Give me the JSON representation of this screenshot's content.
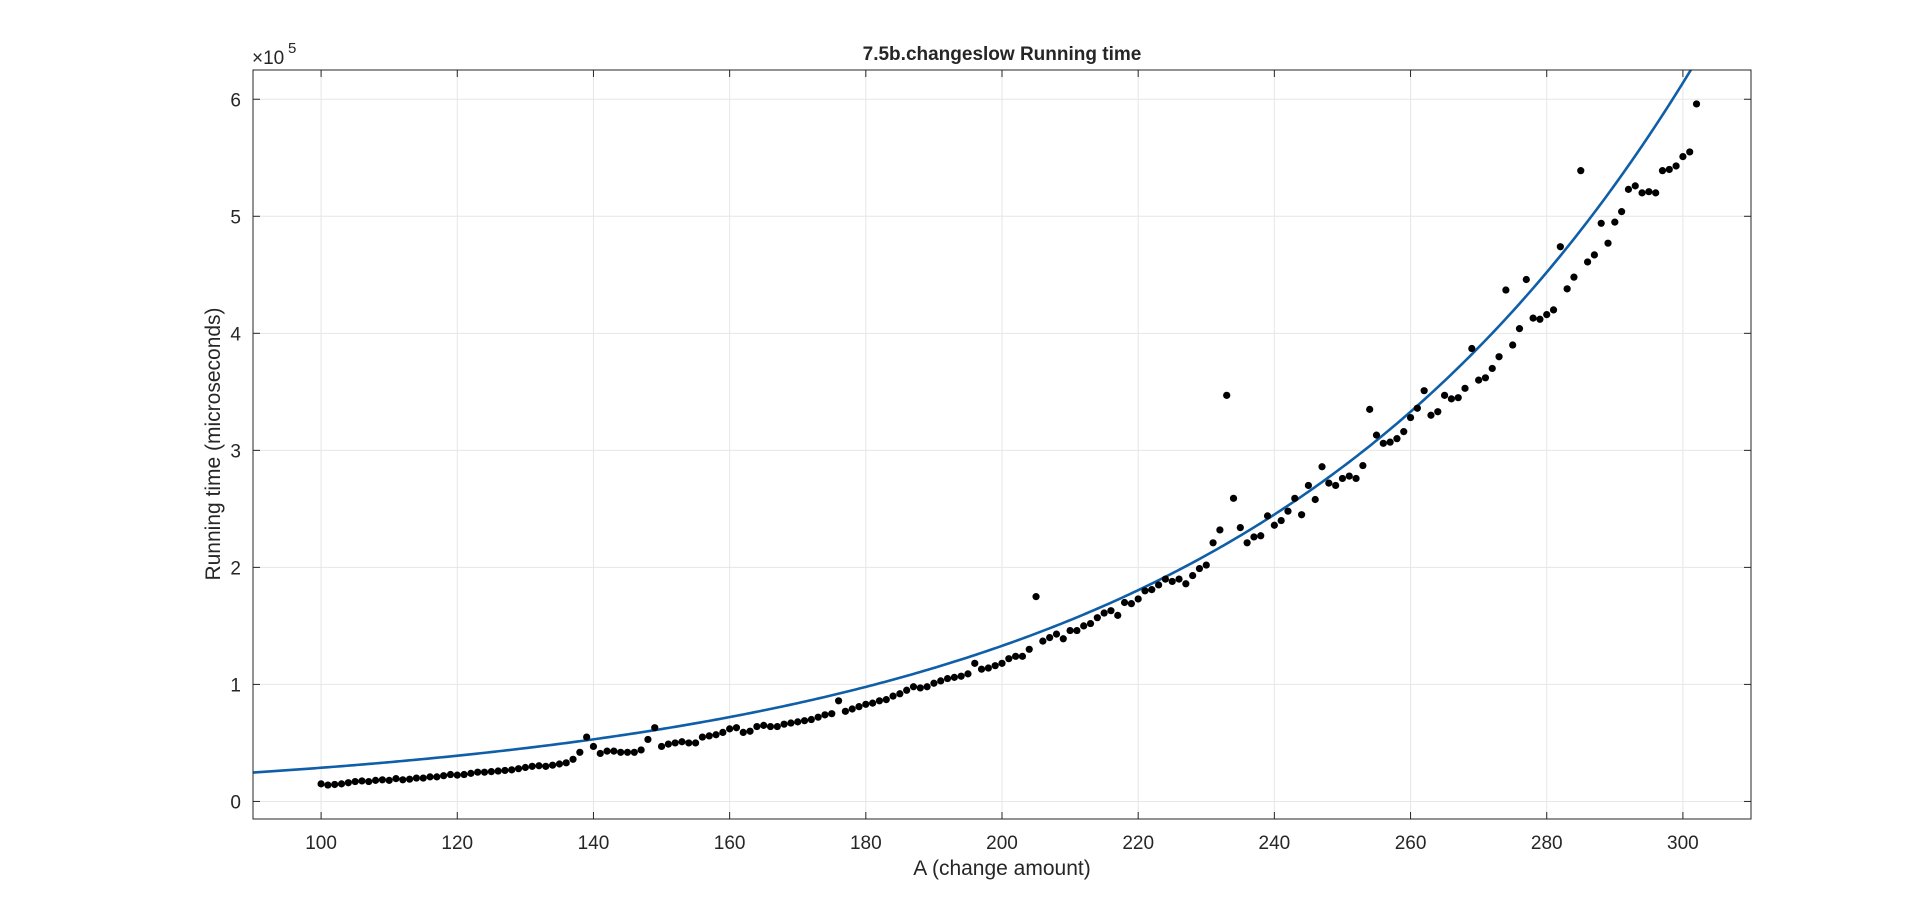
{
  "chart_data": {
    "type": "scatter",
    "title": "7.5b.changeslow Running time",
    "xlabel": "A (change amount)",
    "ylabel": "Running time (microseconds)",
    "xlim": [
      90,
      310
    ],
    "ylim": [
      -15000,
      625000
    ],
    "x_ticks": [
      100,
      120,
      140,
      160,
      180,
      200,
      220,
      240,
      260,
      280,
      300
    ],
    "x_tick_labels": [
      "100",
      "120",
      "140",
      "160",
      "180",
      "200",
      "220",
      "240",
      "260",
      "280",
      "300"
    ],
    "y_ticks": [
      0,
      100000,
      200000,
      300000,
      400000,
      500000,
      600000
    ],
    "y_tick_labels": [
      "0",
      "1",
      "2",
      "3",
      "4",
      "5",
      "6"
    ],
    "y_exponent": {
      "base": "×10",
      "power": "5"
    },
    "grid": true,
    "box": true,
    "colors": {
      "points": "#000000",
      "fit": "#0f5ea8",
      "grid": "#e6e6e6",
      "axes": "#262626"
    },
    "series": [
      {
        "kind": "points",
        "x_start": 100,
        "x_step": 1,
        "y": [
          15000,
          14000,
          14500,
          15000,
          16000,
          17000,
          17500,
          17000,
          18000,
          18500,
          18000,
          19500,
          18500,
          19000,
          20000,
          20000,
          21000,
          21000,
          22000,
          23000,
          22500,
          23000,
          24000,
          25000,
          25000,
          25500,
          26000,
          26500,
          27000,
          28000,
          29000,
          30000,
          30500,
          30000,
          31000,
          32000,
          33000,
          36000,
          42000,
          55000,
          47000,
          41000,
          43000,
          43000,
          42000,
          42000,
          42000,
          44000,
          53000,
          63000,
          47000,
          49000,
          50000,
          51000,
          50000,
          50000,
          55000,
          56000,
          57000,
          59000,
          62000,
          63000,
          59000,
          60000,
          64000,
          65000,
          64000,
          64000,
          66000,
          67000,
          68000,
          69000,
          70000,
          72000,
          74000,
          75000,
          86000,
          77000,
          79000,
          81000,
          83000,
          84000,
          86000,
          87000,
          90000,
          92000,
          95000,
          98000,
          97000,
          98000,
          101000,
          103000,
          105000,
          106000,
          107000,
          109000,
          118000,
          113000,
          114000,
          116000,
          118000,
          122000,
          124000,
          124000,
          130000,
          175000,
          137000,
          140000,
          143000,
          139000,
          146000,
          146000,
          150000,
          152000,
          157000,
          161000,
          163000,
          159000,
          170000,
          169000,
          173000,
          180000,
          181000,
          185000,
          190000,
          188000,
          190000,
          186000,
          193000,
          199000,
          202000,
          221000,
          232000,
          347000,
          259000,
          234000,
          221000,
          226000,
          227000,
          244000,
          236000,
          240000,
          248000,
          259000,
          245000,
          270000,
          258000,
          286000,
          272000,
          270000,
          276000,
          278000,
          276000,
          287000,
          335000,
          313000,
          306000,
          307000,
          310000,
          316000,
          328000,
          336000,
          351000,
          330000,
          333000,
          347000,
          344000,
          345000,
          353000,
          387000,
          360000,
          362000,
          370000,
          380000,
          437000,
          390000,
          404000,
          446000,
          413000,
          412000,
          416000,
          420000,
          474000,
          438000,
          448000,
          539000,
          461000,
          467000,
          494000,
          477000,
          495000,
          504000,
          523000,
          526000,
          520000,
          521000,
          520000,
          539000,
          540000,
          543000,
          551000,
          555000,
          596000
        ]
      },
      {
        "kind": "fit",
        "formula": "y = 24700 * 2^((x - 90) / 45.3)",
        "x_range": [
          90,
          302
        ]
      }
    ]
  }
}
